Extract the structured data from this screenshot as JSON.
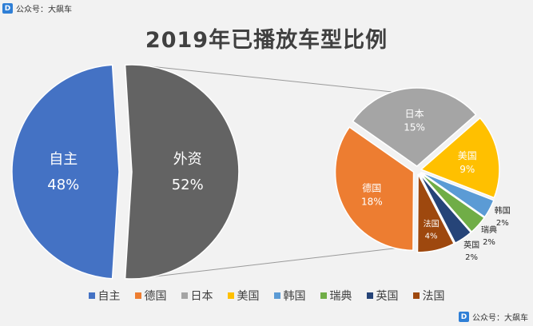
{
  "watermark": {
    "top": "公众号：大飙车",
    "bottom": "公众号：大飙车",
    "logo": "D"
  },
  "chart_data": {
    "type": "pie",
    "title": "2019年已播放车型比例",
    "main_pie": {
      "slices": [
        {
          "name": "自主",
          "value": 48,
          "label": "48%",
          "color": "#4472c4"
        },
        {
          "name": "外资",
          "value": 52,
          "label": "52%",
          "color": "#636363"
        }
      ]
    },
    "breakdown_pie": {
      "of": "外资",
      "slices": [
        {
          "name": "日本",
          "value": 15,
          "label": "15%",
          "color": "#a5a5a5"
        },
        {
          "name": "美国",
          "value": 9,
          "label": "9%",
          "color": "#ffc000"
        },
        {
          "name": "韩国",
          "value": 2,
          "label": "2%",
          "color": "#5b9bd5"
        },
        {
          "name": "瑞典",
          "value": 2,
          "label": "2%",
          "color": "#70ad47"
        },
        {
          "name": "英国",
          "value": 2,
          "label": "2%",
          "color": "#264478"
        },
        {
          "name": "法国",
          "value": 4,
          "label": "4%",
          "color": "#9e480e"
        },
        {
          "name": "德国",
          "value": 18,
          "label": "18%",
          "color": "#ed7d31"
        }
      ]
    },
    "legend": {
      "placement": "bottom",
      "entries": [
        {
          "name": "自主",
          "color": "#4472c4"
        },
        {
          "name": "德国",
          "color": "#ed7d31"
        },
        {
          "name": "日本",
          "color": "#a5a5a5"
        },
        {
          "name": "美国",
          "color": "#ffc000"
        },
        {
          "name": "韩国",
          "color": "#5b9bd5"
        },
        {
          "name": "瑞典",
          "color": "#70ad47"
        },
        {
          "name": "英国",
          "color": "#264478"
        },
        {
          "name": "法国",
          "color": "#9e480e"
        }
      ]
    }
  }
}
